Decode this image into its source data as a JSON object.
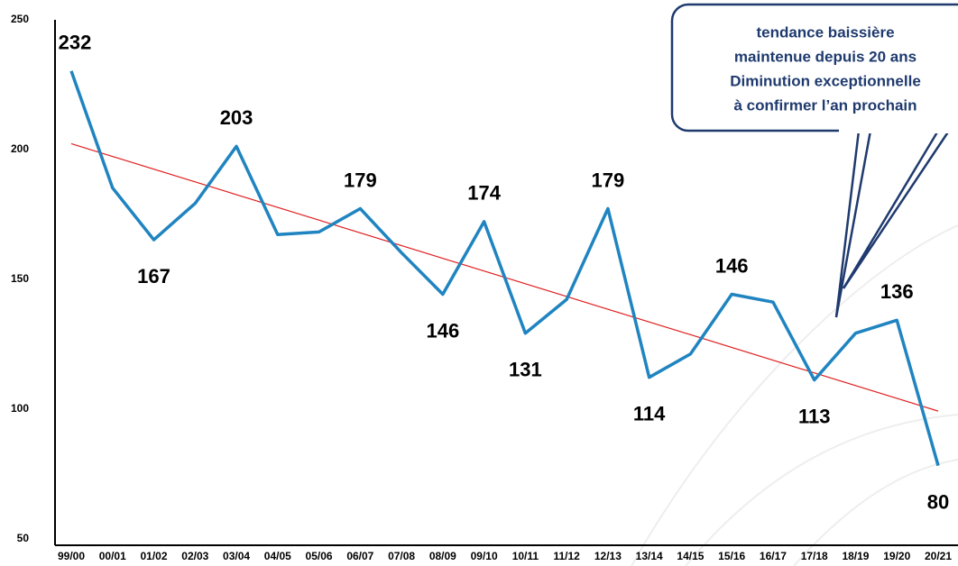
{
  "chart_data": {
    "type": "line",
    "categories": [
      "99/00",
      "00/01",
      "01/02",
      "02/03",
      "03/04",
      "04/05",
      "05/06",
      "06/07",
      "07/08",
      "08/09",
      "09/10",
      "10/11",
      "11/12",
      "12/13",
      "13/14",
      "14/15",
      "15/16",
      "16/17",
      "17/18",
      "18/19",
      "19/20",
      "20/21"
    ],
    "series": [
      {
        "color": "#1f84c0",
        "values": [
          232,
          187,
          167,
          181,
          203,
          169,
          170,
          179,
          162,
          146,
          174,
          131,
          144,
          179,
          114,
          123,
          146,
          143,
          113,
          131,
          136,
          80
        ],
        "value_labels": [
          "232",
          null,
          "167",
          null,
          "203",
          null,
          null,
          "179",
          null,
          "146",
          "174",
          "131",
          null,
          "179",
          "114",
          null,
          "146",
          null,
          "113",
          null,
          "136",
          "80"
        ]
      }
    ],
    "trend": {
      "color": "#e02020",
      "values": [
        204,
        101
      ]
    },
    "ylim": [
      50,
      250
    ],
    "yticks": [
      50,
      100,
      150,
      200,
      250
    ],
    "annotation": [
      "tendance baissière",
      "maintenue depuis 20 ans",
      "Diminution exceptionnelle",
      "à confirmer l’an prochain"
    ]
  }
}
